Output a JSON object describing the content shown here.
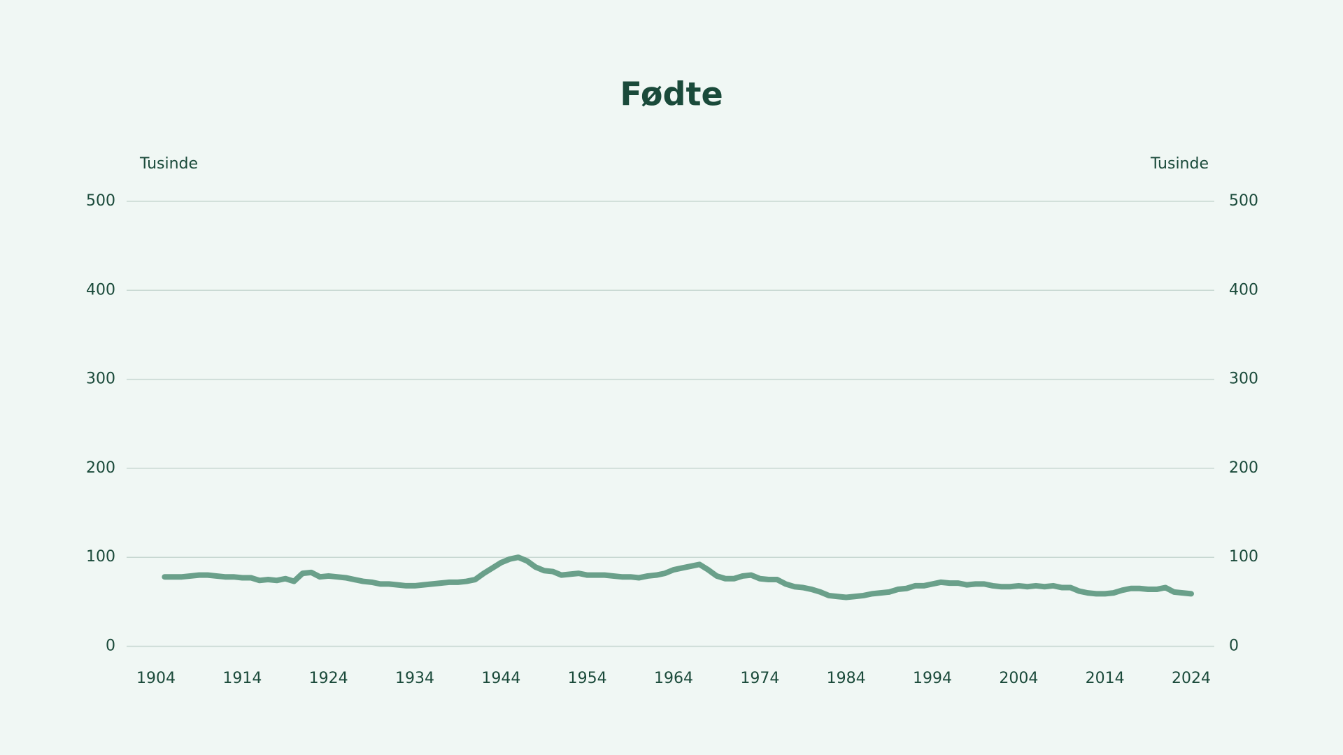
{
  "chart_data": {
    "type": "line",
    "title": "Fødte",
    "y_label": "Tusinde",
    "y2_label": "Tusinde",
    "x": [
      1905,
      1906,
      1907,
      1908,
      1909,
      1910,
      1911,
      1912,
      1913,
      1914,
      1915,
      1916,
      1917,
      1918,
      1919,
      1920,
      1921,
      1922,
      1923,
      1924,
      1925,
      1926,
      1927,
      1928,
      1929,
      1930,
      1931,
      1932,
      1933,
      1934,
      1935,
      1936,
      1937,
      1938,
      1939,
      1940,
      1941,
      1942,
      1943,
      1944,
      1945,
      1946,
      1947,
      1948,
      1949,
      1950,
      1951,
      1952,
      1953,
      1954,
      1955,
      1956,
      1957,
      1958,
      1959,
      1960,
      1961,
      1962,
      1963,
      1964,
      1965,
      1966,
      1967,
      1968,
      1969,
      1970,
      1971,
      1972,
      1973,
      1974,
      1975,
      1976,
      1977,
      1978,
      1979,
      1980,
      1981,
      1982,
      1983,
      1984,
      1985,
      1986,
      1987,
      1988,
      1989,
      1990,
      1991,
      1992,
      1993,
      1994,
      1995,
      1996,
      1997,
      1998,
      1999,
      2000,
      2001,
      2002,
      2003,
      2004,
      2005,
      2006,
      2007,
      2008,
      2009,
      2010,
      2011,
      2012,
      2013,
      2014,
      2015,
      2016,
      2017,
      2018,
      2019,
      2020,
      2021,
      2022,
      2023,
      2024
    ],
    "series": [
      {
        "name": "Fødte",
        "color": "#6aa08a",
        "values": [
          78,
          78,
          78,
          79,
          80,
          80,
          79,
          78,
          78,
          77,
          77,
          74,
          75,
          74,
          76,
          73,
          82,
          83,
          78,
          79,
          78,
          77,
          75,
          73,
          72,
          70,
          70,
          69,
          68,
          68,
          69,
          70,
          71,
          72,
          72,
          73,
          75,
          82,
          88,
          94,
          98,
          100,
          96,
          89,
          85,
          84,
          80,
          81,
          82,
          80,
          80,
          80,
          79,
          78,
          78,
          77,
          79,
          80,
          82,
          86,
          88,
          90,
          92,
          86,
          79,
          76,
          76,
          79,
          80,
          76,
          75,
          75,
          70,
          67,
          66,
          64,
          61,
          57,
          56,
          55,
          56,
          57,
          59,
          60,
          61,
          64,
          65,
          68,
          68,
          70,
          72,
          71,
          71,
          69,
          70,
          70,
          68,
          67,
          67,
          68,
          67,
          68,
          67,
          68,
          66,
          66,
          62,
          60,
          59,
          59,
          60,
          63,
          65,
          65,
          64,
          64,
          66,
          61,
          60,
          59
        ]
      }
    ],
    "xlim": [
      1904,
      2024
    ],
    "xticks": [
      1904,
      1914,
      1924,
      1934,
      1944,
      1954,
      1964,
      1974,
      1984,
      1994,
      2004,
      2014,
      2024
    ],
    "ylim": [
      0,
      500
    ],
    "yticks": [
      0,
      100,
      200,
      300,
      400,
      500
    ],
    "y2lim": [
      0,
      500
    ],
    "y2ticks": [
      0,
      100,
      200,
      300,
      400,
      500
    ],
    "grid": true
  }
}
